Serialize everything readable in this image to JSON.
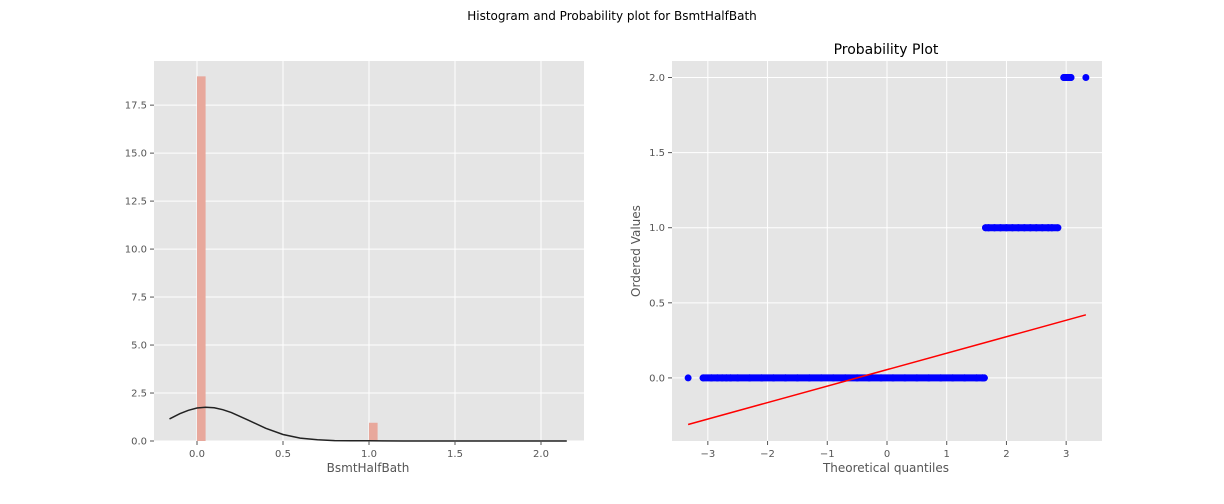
{
  "figure": {
    "suptitle": "Histogram and Probability plot for BsmtHalfBath"
  },
  "colors": {
    "panel_bg": "#E5E5E5",
    "bar": "#E8A89C",
    "kde": "#222222",
    "points": "#0000FF",
    "fit_line": "#FF0000",
    "grid": "#FFFFFF",
    "tick_text": "#555555"
  },
  "chart_data": [
    {
      "type": "bar",
      "title": "",
      "xlabel": "BsmtHalfBath",
      "ylabel": "",
      "xlim": [
        -0.25,
        2.25
      ],
      "ylim": [
        0,
        19.8
      ],
      "grid": true,
      "xticks": [
        0.0,
        0.5,
        1.0,
        1.5,
        2.0
      ],
      "xtick_labels": [
        "0.0",
        "0.5",
        "1.0",
        "1.5",
        "2.0"
      ],
      "yticks": [
        0.0,
        2.5,
        5.0,
        7.5,
        10.0,
        12.5,
        15.0,
        17.5
      ],
      "ytick_labels": [
        "0.0",
        "2.5",
        "5.0",
        "7.5",
        "10.0",
        "12.5",
        "15.0",
        "17.5"
      ],
      "bars": [
        {
          "x0": 0.0,
          "x1": 0.05,
          "height": 19.0
        },
        {
          "x0": 1.0,
          "x1": 1.05,
          "height": 0.95
        }
      ],
      "kde_line": {
        "x": [
          -0.16,
          -0.1,
          -0.05,
          0.0,
          0.05,
          0.1,
          0.15,
          0.2,
          0.3,
          0.4,
          0.5,
          0.6,
          0.7,
          0.8,
          0.9,
          1.0,
          1.2,
          1.5,
          1.8,
          2.15
        ],
        "y": [
          1.15,
          1.42,
          1.6,
          1.72,
          1.76,
          1.73,
          1.63,
          1.48,
          1.08,
          0.66,
          0.34,
          0.15,
          0.06,
          0.02,
          0.01,
          0.01,
          0.0,
          0.0,
          0.0,
          0.0
        ]
      }
    },
    {
      "type": "scatter",
      "title": "Probability Plot",
      "xlabel": "Theoretical quantiles",
      "ylabel": "Ordered Values",
      "xlim": [
        -3.6,
        3.6
      ],
      "ylim": [
        -0.42,
        2.11
      ],
      "grid": true,
      "xticks": [
        -3,
        -2,
        -1,
        0,
        1,
        2,
        3
      ],
      "xtick_labels": [
        "−3",
        "−2",
        "−1",
        "0",
        "1",
        "2",
        "3"
      ],
      "yticks": [
        0.0,
        0.5,
        1.0,
        1.5,
        2.0
      ],
      "ytick_labels": [
        "0.0",
        "0.5",
        "1.0",
        "1.5",
        "2.0"
      ],
      "points_x": [
        -3.33,
        -3.08,
        -2.94,
        -2.84,
        -2.76,
        -2.69,
        -2.62,
        -2.5,
        -2.3,
        -2.1,
        -1.9,
        -1.7,
        -1.5,
        -1.3,
        -1.1,
        -0.9,
        -0.7,
        -0.5,
        -0.3,
        -0.1,
        0.1,
        0.3,
        0.5,
        0.7,
        0.9,
        1.1,
        1.3,
        1.5,
        1.6,
        1.63,
        1.65,
        1.7,
        1.8,
        1.9,
        2.0,
        2.1,
        2.2,
        2.3,
        2.4,
        2.5,
        2.6,
        2.7,
        2.76,
        2.86,
        2.96,
        3.08,
        3.33
      ],
      "points_y": [
        0,
        0,
        0,
        0,
        0,
        0,
        0,
        0,
        0,
        0,
        0,
        0,
        0,
        0,
        0,
        0,
        0,
        0,
        0,
        0,
        0,
        0,
        0,
        0,
        0,
        0,
        0,
        0,
        0,
        0,
        1,
        1,
        1,
        1,
        1,
        1,
        1,
        1,
        1,
        1,
        1,
        1,
        1,
        1,
        2,
        2,
        2
      ],
      "fit_line": {
        "x": [
          -3.33,
          3.33
        ],
        "y": [
          -0.31,
          0.42
        ]
      }
    }
  ]
}
